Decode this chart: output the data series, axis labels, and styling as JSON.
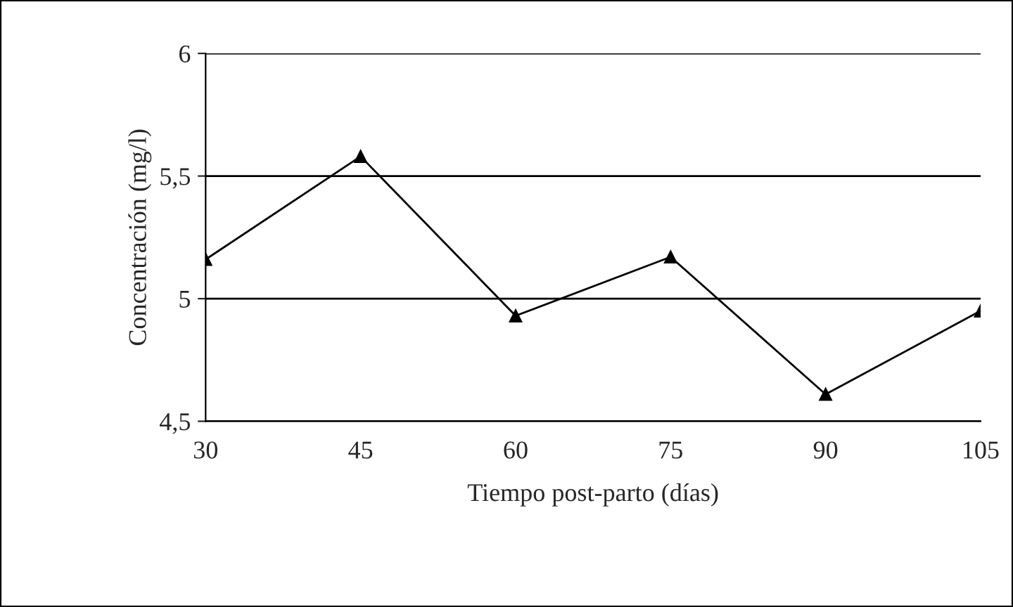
{
  "chart_data": {
    "type": "line",
    "xlabel": "Tiempo post-parto (días)",
    "ylabel": "Concentración (mg/l)",
    "x": [
      30,
      45,
      60,
      75,
      90,
      105
    ],
    "series": [
      {
        "color": "#000000",
        "values": [
          5.16,
          5.58,
          4.93,
          5.17,
          4.61,
          4.95
        ]
      }
    ],
    "xlim": [
      30,
      105
    ],
    "xticks": [
      30,
      45,
      60,
      75,
      90,
      105
    ],
    "ylim": [
      4.5,
      6
    ],
    "yticks": [
      {
        "value": 4.5,
        "label": "4,5"
      },
      {
        "value": 5,
        "label": "5"
      },
      {
        "value": 5.5,
        "label": "5,5"
      },
      {
        "value": 6,
        "label": "6"
      }
    ],
    "grid": "y",
    "marker": "triangle",
    "line_style": "solid",
    "legend": false
  }
}
